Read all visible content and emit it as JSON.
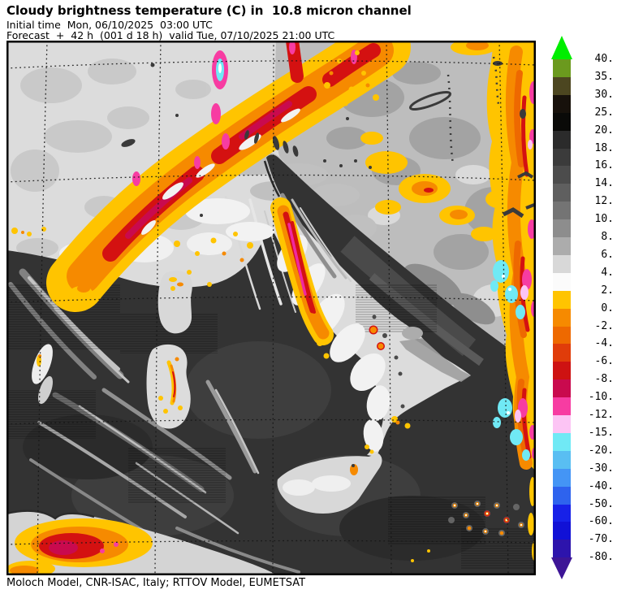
{
  "header": {
    "title": "Cloudy brightness temperature (C) in  10.8 micron channel",
    "initial_time_line": "Initial time  Mon, 06/10/2025  03:00 UTC",
    "forecast_line": "Forecast  +  42 h  (001 d 18 h)  valid Tue, 07/10/2025 21:00 UTC"
  },
  "footer": {
    "credit": "Moloch Model, CNR-ISAC, Italy; RTTOV Model, EUMETSAT"
  },
  "colorbar": {
    "unit": "C",
    "over_arrow_color": "#00EE00",
    "under_arrow_color": "#3D1596",
    "tick_labels": [
      "40.",
      "35.",
      "30.",
      "25.",
      "20.",
      "18.",
      "16.",
      "14.",
      "12.",
      "10.",
      "8.",
      "6.",
      "4.",
      "2.",
      "0.",
      "-2.",
      "-4.",
      "-6.",
      "-8.",
      "-10.",
      "-12.",
      "-15.",
      "-20.",
      "-30.",
      "-40.",
      "-50.",
      "-60.",
      "-70.",
      "-80."
    ],
    "segment_colors": [
      "#6B9A1E",
      "#4C4620",
      "#17110B",
      "#0A0A08",
      "#2B2B2B",
      "#3B3B3B",
      "#4C4C4C",
      "#5F5F5F",
      "#747474",
      "#8D8D8D",
      "#ACACAC",
      "#D8D8D8",
      "#FBFBFB",
      "#FFC400",
      "#F68A00",
      "#EE6900",
      "#E03C0A",
      "#CE1212",
      "#C90A4E",
      "#F73CA2",
      "#FCC4F4",
      "#70E9F5",
      "#59BEF2",
      "#4495F5",
      "#2E63EE",
      "#1721E8",
      "#1111D6",
      "#2D14AC"
    ]
  },
  "map": {
    "sea_color": "#333333",
    "land_cloud_color": "#DCDCDC",
    "balkans_cloud_color": "#BDBDBD",
    "cold_cloud_band_colors": [
      "#FFC400",
      "#F68A00",
      "#D41111",
      "#C90A4E",
      "#F73CA2"
    ],
    "very_cold_spot_colors": [
      "#FCC4F4",
      "#70E9F5"
    ],
    "graticule_style": "dotted-black"
  }
}
